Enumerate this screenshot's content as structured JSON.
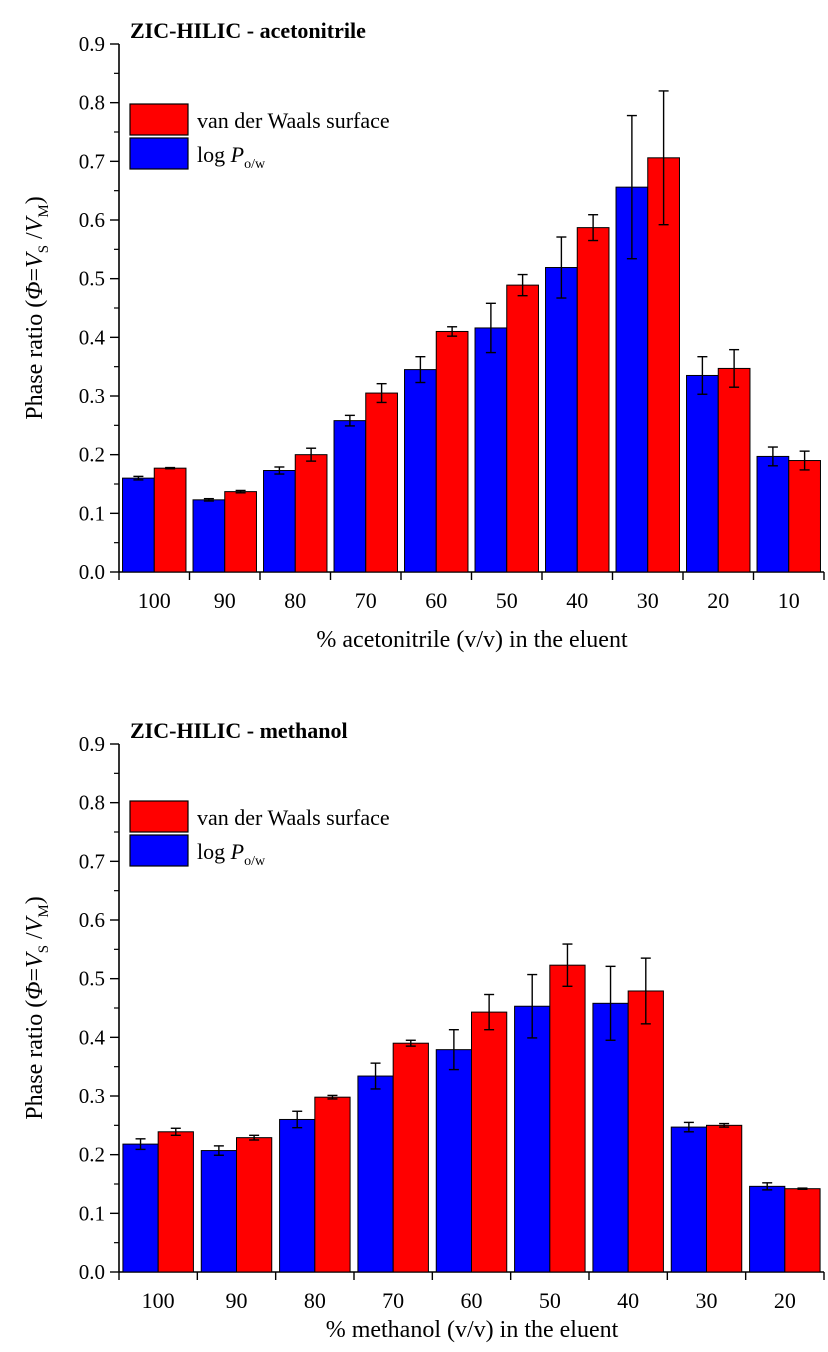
{
  "chart_data": [
    {
      "type": "bar",
      "title": "ZIC-HILIC - acetonitrile",
      "xlabel": "% acetonitrile (v/v) in the eluent",
      "ylabel": {
        "prefix": "Phase ratio (",
        "phi": "Φ",
        "eq": "=",
        "v": "V",
        "sub_s": "S",
        "slash": " /",
        "sub_m": "M",
        "suffix": ")"
      },
      "ylim": [
        0,
        0.9
      ],
      "yticks": [
        "0.0",
        "0.1",
        "0.2",
        "0.3",
        "0.4",
        "0.5",
        "0.6",
        "0.7",
        "0.8",
        "0.9"
      ],
      "categories": [
        "100",
        "90",
        "80",
        "70",
        "60",
        "50",
        "40",
        "30",
        "20",
        "10"
      ],
      "legend_position": "upper-left",
      "series": [
        {
          "name": "log P o/w",
          "legend": {
            "text": "log ",
            "italic": "P",
            "sub": "o/w"
          },
          "color": "#0000ff",
          "values": [
            0.16,
            0.123,
            0.173,
            0.258,
            0.345,
            0.416,
            0.519,
            0.656,
            0.335,
            0.197
          ],
          "errors": [
            0.003,
            0.002,
            0.006,
            0.009,
            0.022,
            0.042,
            0.052,
            0.122,
            0.032,
            0.016
          ]
        },
        {
          "name": "van der Waals surface",
          "legend": {
            "text": "van der Waals surface",
            "italic": "",
            "sub": ""
          },
          "color": "#ff0000",
          "values": [
            0.177,
            0.137,
            0.2,
            0.305,
            0.41,
            0.489,
            0.587,
            0.706,
            0.347,
            0.19
          ],
          "errors": [
            0.001,
            0.002,
            0.011,
            0.016,
            0.008,
            0.018,
            0.022,
            0.114,
            0.032,
            0.016
          ]
        }
      ]
    },
    {
      "type": "bar",
      "title": "ZIC-HILIC - methanol",
      "xlabel": "% methanol (v/v) in the eluent",
      "ylabel": {
        "prefix": "Phase ratio (",
        "phi": "Φ",
        "eq": "=",
        "v": "V",
        "sub_s": "S",
        "slash": " /",
        "sub_m": "M",
        "suffix": ")"
      },
      "ylim": [
        0,
        0.9
      ],
      "yticks": [
        "0.0",
        "0.1",
        "0.2",
        "0.3",
        "0.4",
        "0.5",
        "0.6",
        "0.7",
        "0.8",
        "0.9"
      ],
      "categories": [
        "100",
        "90",
        "80",
        "70",
        "60",
        "50",
        "40",
        "30",
        "20"
      ],
      "legend_position": "upper-left",
      "series": [
        {
          "name": "log P o/w",
          "legend": {
            "text": "log ",
            "italic": "P",
            "sub": "o/w"
          },
          "color": "#0000ff",
          "values": [
            0.218,
            0.207,
            0.26,
            0.334,
            0.379,
            0.453,
            0.458,
            0.247,
            0.146
          ],
          "errors": [
            0.009,
            0.008,
            0.014,
            0.022,
            0.034,
            0.054,
            0.063,
            0.008,
            0.006
          ]
        },
        {
          "name": "van der Waals surface",
          "legend": {
            "text": "van der Waals surface",
            "italic": "",
            "sub": ""
          },
          "color": "#ff0000",
          "values": [
            0.239,
            0.229,
            0.298,
            0.39,
            0.443,
            0.523,
            0.479,
            0.25,
            0.142
          ],
          "errors": [
            0.006,
            0.004,
            0.003,
            0.005,
            0.03,
            0.036,
            0.056,
            0.003,
            0.001
          ]
        }
      ]
    }
  ]
}
